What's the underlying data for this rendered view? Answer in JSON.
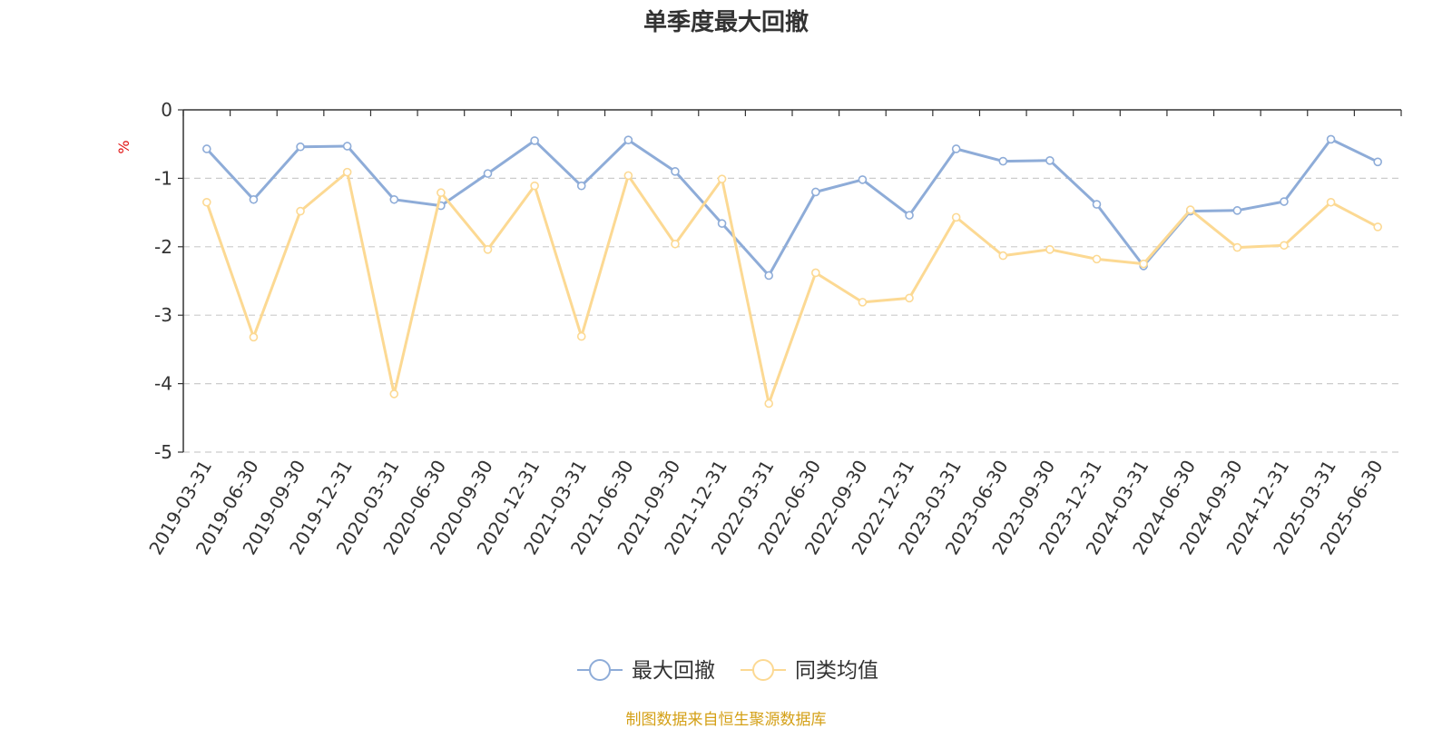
{
  "colors": {
    "series1": "#8eacd8",
    "series2": "#fcd993",
    "axis": "#333333",
    "grid": "#cccccc",
    "unit": "#e01010",
    "source": "#d4a017"
  },
  "source_note": "制图数据来自恒生聚源数据库",
  "chart_data": {
    "type": "line",
    "title": "单季度最大回撤",
    "ylabel": "%",
    "ylim": [
      -5,
      0
    ],
    "yticks": [
      0,
      -1,
      -2,
      -3,
      -4,
      -5
    ],
    "grid": "y-dashed",
    "legend_position": "bottom-center",
    "categories": [
      "2019-03-31",
      "2019-06-30",
      "2019-09-30",
      "2019-12-31",
      "2020-03-31",
      "2020-06-30",
      "2020-09-30",
      "2020-12-31",
      "2021-03-31",
      "2021-06-30",
      "2021-09-30",
      "2021-12-31",
      "2022-03-31",
      "2022-06-30",
      "2022-09-30",
      "2022-12-31",
      "2023-03-31",
      "2023-06-30",
      "2023-09-30",
      "2023-12-31",
      "2024-03-31",
      "2024-06-30",
      "2024-09-30",
      "2024-12-31",
      "2025-03-31",
      "2025-06-30"
    ],
    "series": [
      {
        "name": "最大回撤",
        "values": [
          -0.57,
          -1.31,
          -0.54,
          -0.53,
          -1.31,
          -1.4,
          -0.93,
          -0.45,
          -1.11,
          -0.44,
          -0.9,
          -1.66,
          -2.42,
          -1.2,
          -1.02,
          -1.54,
          -0.57,
          -0.75,
          -0.74,
          -1.38,
          -2.28,
          -1.48,
          -1.47,
          -1.34,
          -0.43,
          -0.76
        ]
      },
      {
        "name": "同类均值",
        "values": [
          -1.35,
          -3.32,
          -1.48,
          -0.91,
          -4.15,
          -1.21,
          -2.04,
          -1.11,
          -3.31,
          -0.96,
          -1.96,
          -1.01,
          -4.29,
          -2.38,
          -2.81,
          -2.75,
          -1.57,
          -2.13,
          -2.04,
          -2.18,
          -2.25,
          -1.46,
          -2.01,
          -1.98,
          -1.35,
          -1.71
        ]
      }
    ]
  }
}
